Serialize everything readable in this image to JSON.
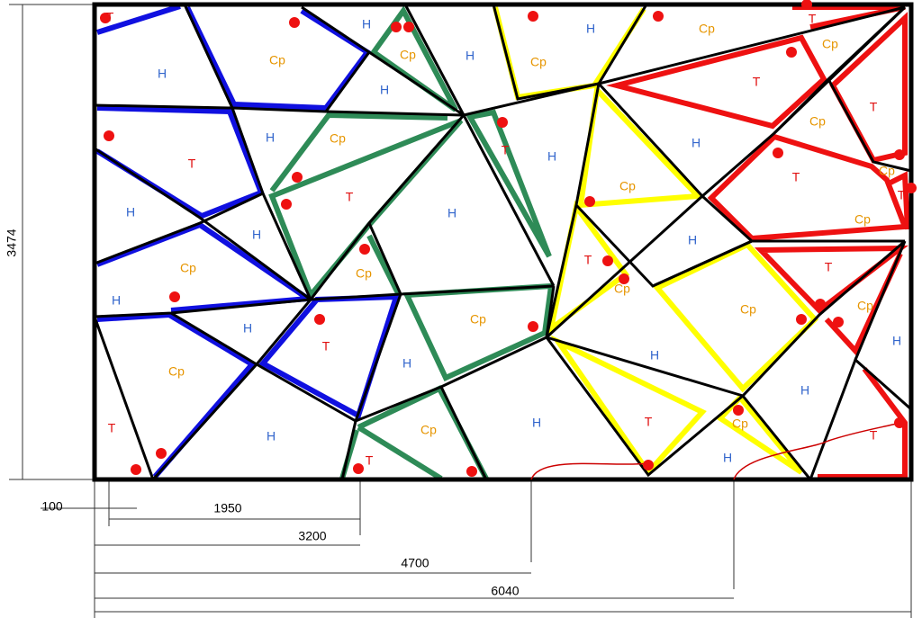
{
  "regions": [
    "Т",
    "Н",
    "Ср",
    "Ср",
    "Н",
    "Н",
    "Н",
    "Ср",
    "Н",
    "Ср",
    "Т",
    "Ср",
    "Т",
    "Т",
    "Ср",
    "Н",
    "Ср",
    "Н",
    "Т",
    "Т",
    "Н",
    "Т",
    "Н",
    "Н",
    "Н",
    "Ср",
    "Т",
    "Ср",
    "Т",
    "Ср",
    "Н",
    "Ср",
    "Ср",
    "Т",
    "Ср",
    "Т",
    "Н",
    "Н",
    "Ср",
    "Т",
    "Ср",
    "Ср",
    "Н",
    "Ср",
    "Н",
    "Н",
    "Н",
    "Т",
    "Н",
    "Ср",
    "Т",
    "Н",
    "Т",
    "Ср",
    "Н",
    "Т"
  ],
  "dimensions": {
    "height": 3474,
    "offset": 100,
    "d1": 1950,
    "d2": 3200,
    "d3": 4700,
    "d4": 6040
  }
}
